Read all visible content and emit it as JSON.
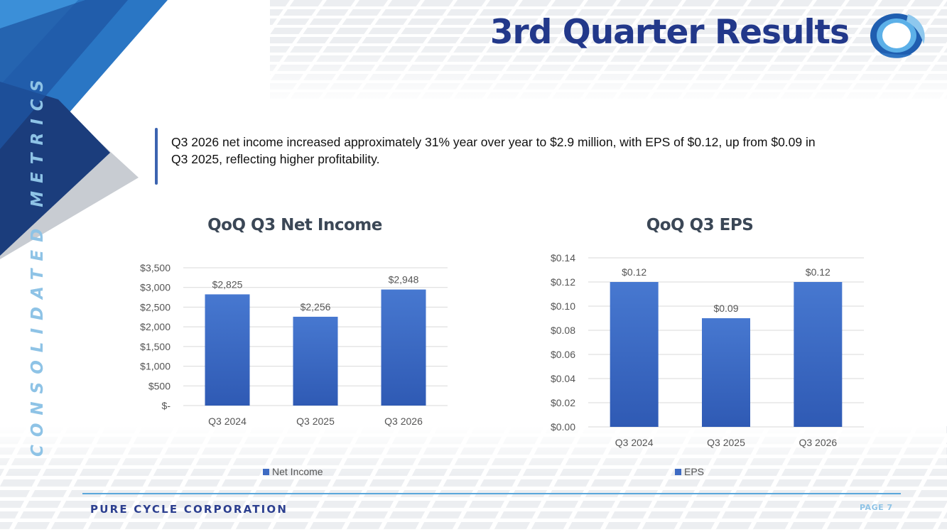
{
  "slide": {
    "title": "3rd Quarter Results",
    "side_label": "CONSOLIDATED METRICS",
    "callout": "Q3 2026 net income increased approximately 31% year over year to $2.9 million, with EPS of $0.12, up from $0.09 in Q3 2025, reflecting higher profitability.",
    "footer_company": "PURE CYCLE CORPORATION",
    "footer_page": "PAGE 7"
  },
  "colors": {
    "title": "#22388a",
    "bar_top": "#4778d0",
    "bar_bottom": "#2f5ab4",
    "side_label": "#8ec3e6",
    "footer_line": "#5aa7db"
  },
  "chart_data": [
    {
      "type": "bar",
      "title": "QoQ Q3 Net Income",
      "categories": [
        "Q3 2024",
        "Q3 2025",
        "Q3 2026"
      ],
      "series": [
        {
          "name": "Net Income",
          "values": [
            2825,
            2256,
            2948
          ]
        }
      ],
      "data_labels": [
        "$2,825",
        "$2,256",
        "$2,948"
      ],
      "ylim": [
        0,
        3500
      ],
      "yticks": [
        0,
        500,
        1000,
        1500,
        2000,
        2500,
        3000,
        3500
      ],
      "ytick_labels": [
        "$-",
        "$500",
        "$1,000",
        "$1,500",
        "$2,000",
        "$2,500",
        "$3,000",
        "$3,500"
      ],
      "grid": true,
      "legend": "bottom"
    },
    {
      "type": "bar",
      "title": "QoQ Q3 EPS",
      "categories": [
        "Q3 2024",
        "Q3 2025",
        "Q3 2026"
      ],
      "series": [
        {
          "name": "EPS",
          "values": [
            0.12,
            0.09,
            0.12
          ]
        }
      ],
      "data_labels": [
        "$0.12",
        "$0.09",
        "$0.12"
      ],
      "ylim": [
        0,
        0.14
      ],
      "yticks": [
        0,
        0.02,
        0.04,
        0.06,
        0.08,
        0.1,
        0.12,
        0.14
      ],
      "ytick_labels": [
        "$0.00",
        "$0.02",
        "$0.04",
        "$0.06",
        "$0.08",
        "$0.10",
        "$0.12",
        "$0.14"
      ],
      "grid": true,
      "legend": "bottom"
    }
  ]
}
